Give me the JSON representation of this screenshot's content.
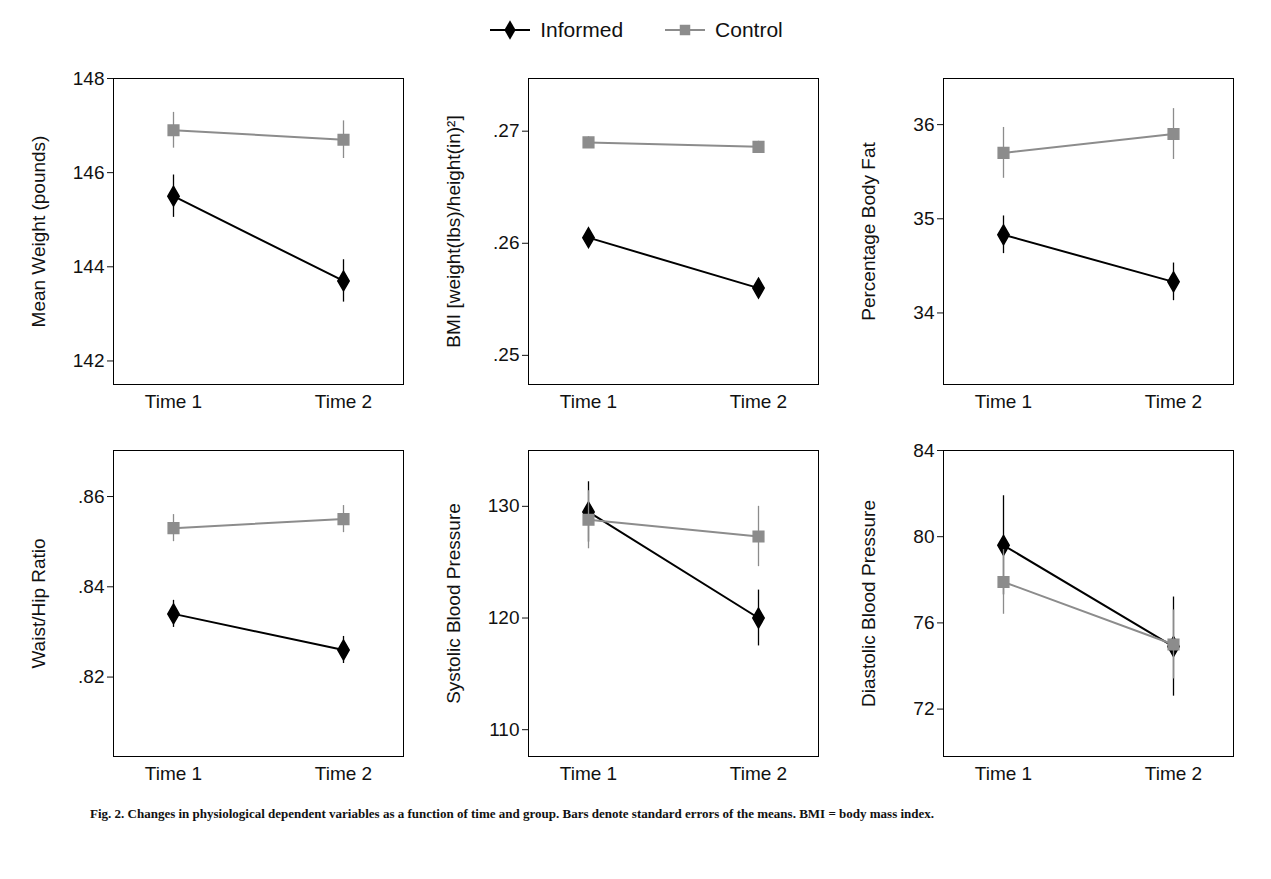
{
  "chart_data": [
    {
      "type": "line",
      "ylabel": "Mean Weight (pounds)",
      "categories": [
        "Time 1",
        "Time 2"
      ],
      "series": [
        {
          "name": "Informed",
          "color": "#000000",
          "marker": "diamond",
          "values": [
            145.5,
            143.7
          ],
          "errors": [
            0.45,
            0.45
          ]
        },
        {
          "name": "Control",
          "color": "#8c8c8c",
          "marker": "square",
          "values": [
            146.9,
            146.7
          ],
          "errors": [
            0.38,
            0.4
          ]
        }
      ],
      "ylim": [
        141.5,
        148
      ],
      "yticks": [
        142,
        144,
        146,
        148
      ],
      "grid": false
    },
    {
      "type": "line",
      "ylabel": "BMI [weight(lbs)/height(in)²]",
      "categories": [
        "Time 1",
        "Time 2"
      ],
      "series": [
        {
          "name": "Informed",
          "color": "#000000",
          "marker": "diamond",
          "values": [
            0.2605,
            0.256
          ],
          "errors": [
            0.0007,
            0.0006
          ]
        },
        {
          "name": "Control",
          "color": "#8c8c8c",
          "marker": "square",
          "values": [
            0.269,
            0.2686
          ],
          "errors": [
            0.0005,
            0.0005
          ]
        }
      ],
      "ylim": [
        0.2474,
        0.2747
      ],
      "yticks": [
        {
          "value": 0.25,
          "label": ".25"
        },
        {
          "value": 0.26,
          "label": ".26"
        },
        {
          "value": 0.27,
          "label": ".27"
        }
      ],
      "grid": false
    },
    {
      "type": "line",
      "ylabel": "Percentage Body Fat",
      "categories": [
        "Time 1",
        "Time 2"
      ],
      "series": [
        {
          "name": "Informed",
          "color": "#000000",
          "marker": "diamond",
          "values": [
            34.83,
            34.33
          ],
          "errors": [
            0.2,
            0.2
          ]
        },
        {
          "name": "Control",
          "color": "#8c8c8c",
          "marker": "square",
          "values": [
            35.7,
            35.9
          ],
          "errors": [
            0.27,
            0.27
          ]
        }
      ],
      "ylim": [
        33.24,
        36.49
      ],
      "yticks": [
        34,
        35,
        36
      ],
      "grid": false
    },
    {
      "type": "line",
      "ylabel": "Waist/Hip Ratio",
      "categories": [
        "Time 1",
        "Time 2"
      ],
      "series": [
        {
          "name": "Informed",
          "color": "#000000",
          "marker": "diamond",
          "values": [
            0.834,
            0.826
          ],
          "errors": [
            0.003,
            0.003
          ]
        },
        {
          "name": "Control",
          "color": "#8c8c8c",
          "marker": "square",
          "values": [
            0.853,
            0.855
          ],
          "errors": [
            0.003,
            0.003
          ]
        }
      ],
      "ylim": [
        0.8024,
        0.8702
      ],
      "yticks": [
        {
          "value": 0.82,
          "label": ".82"
        },
        {
          "value": 0.84,
          "label": ".84"
        },
        {
          "value": 0.86,
          "label": ".86"
        }
      ],
      "grid": false
    },
    {
      "type": "line",
      "ylabel": "Systolic Blood Pressure",
      "categories": [
        "Time 1",
        "Time 2"
      ],
      "series": [
        {
          "name": "Informed",
          "color": "#000000",
          "marker": "diamond",
          "values": [
            129.5,
            120.0
          ],
          "errors": [
            2.7,
            2.5
          ]
        },
        {
          "name": "Control",
          "color": "#8c8c8c",
          "marker": "square",
          "values": [
            128.8,
            127.3
          ],
          "errors": [
            2.6,
            2.7
          ]
        }
      ],
      "ylim": [
        107.6,
        135
      ],
      "yticks": [
        110,
        120,
        130
      ],
      "grid": false
    },
    {
      "type": "line",
      "ylabel": "Diastolic Blood Pressure",
      "categories": [
        "Time 1",
        "Time 2"
      ],
      "series": [
        {
          "name": "Informed",
          "color": "#000000",
          "marker": "diamond",
          "values": [
            79.6,
            74.9
          ],
          "errors": [
            2.3,
            2.3
          ]
        },
        {
          "name": "Control",
          "color": "#8c8c8c",
          "marker": "square",
          "values": [
            77.9,
            75.0
          ],
          "errors": [
            1.5,
            1.6
          ]
        }
      ],
      "ylim": [
        69.8,
        84
      ],
      "yticks": [
        72,
        76,
        80,
        84
      ],
      "grid": false
    }
  ],
  "caption": "Fig. 2. Changes in physiological dependent variables as a function of time and group. Bars denote standard errors of the means. BMI = body mass index."
}
